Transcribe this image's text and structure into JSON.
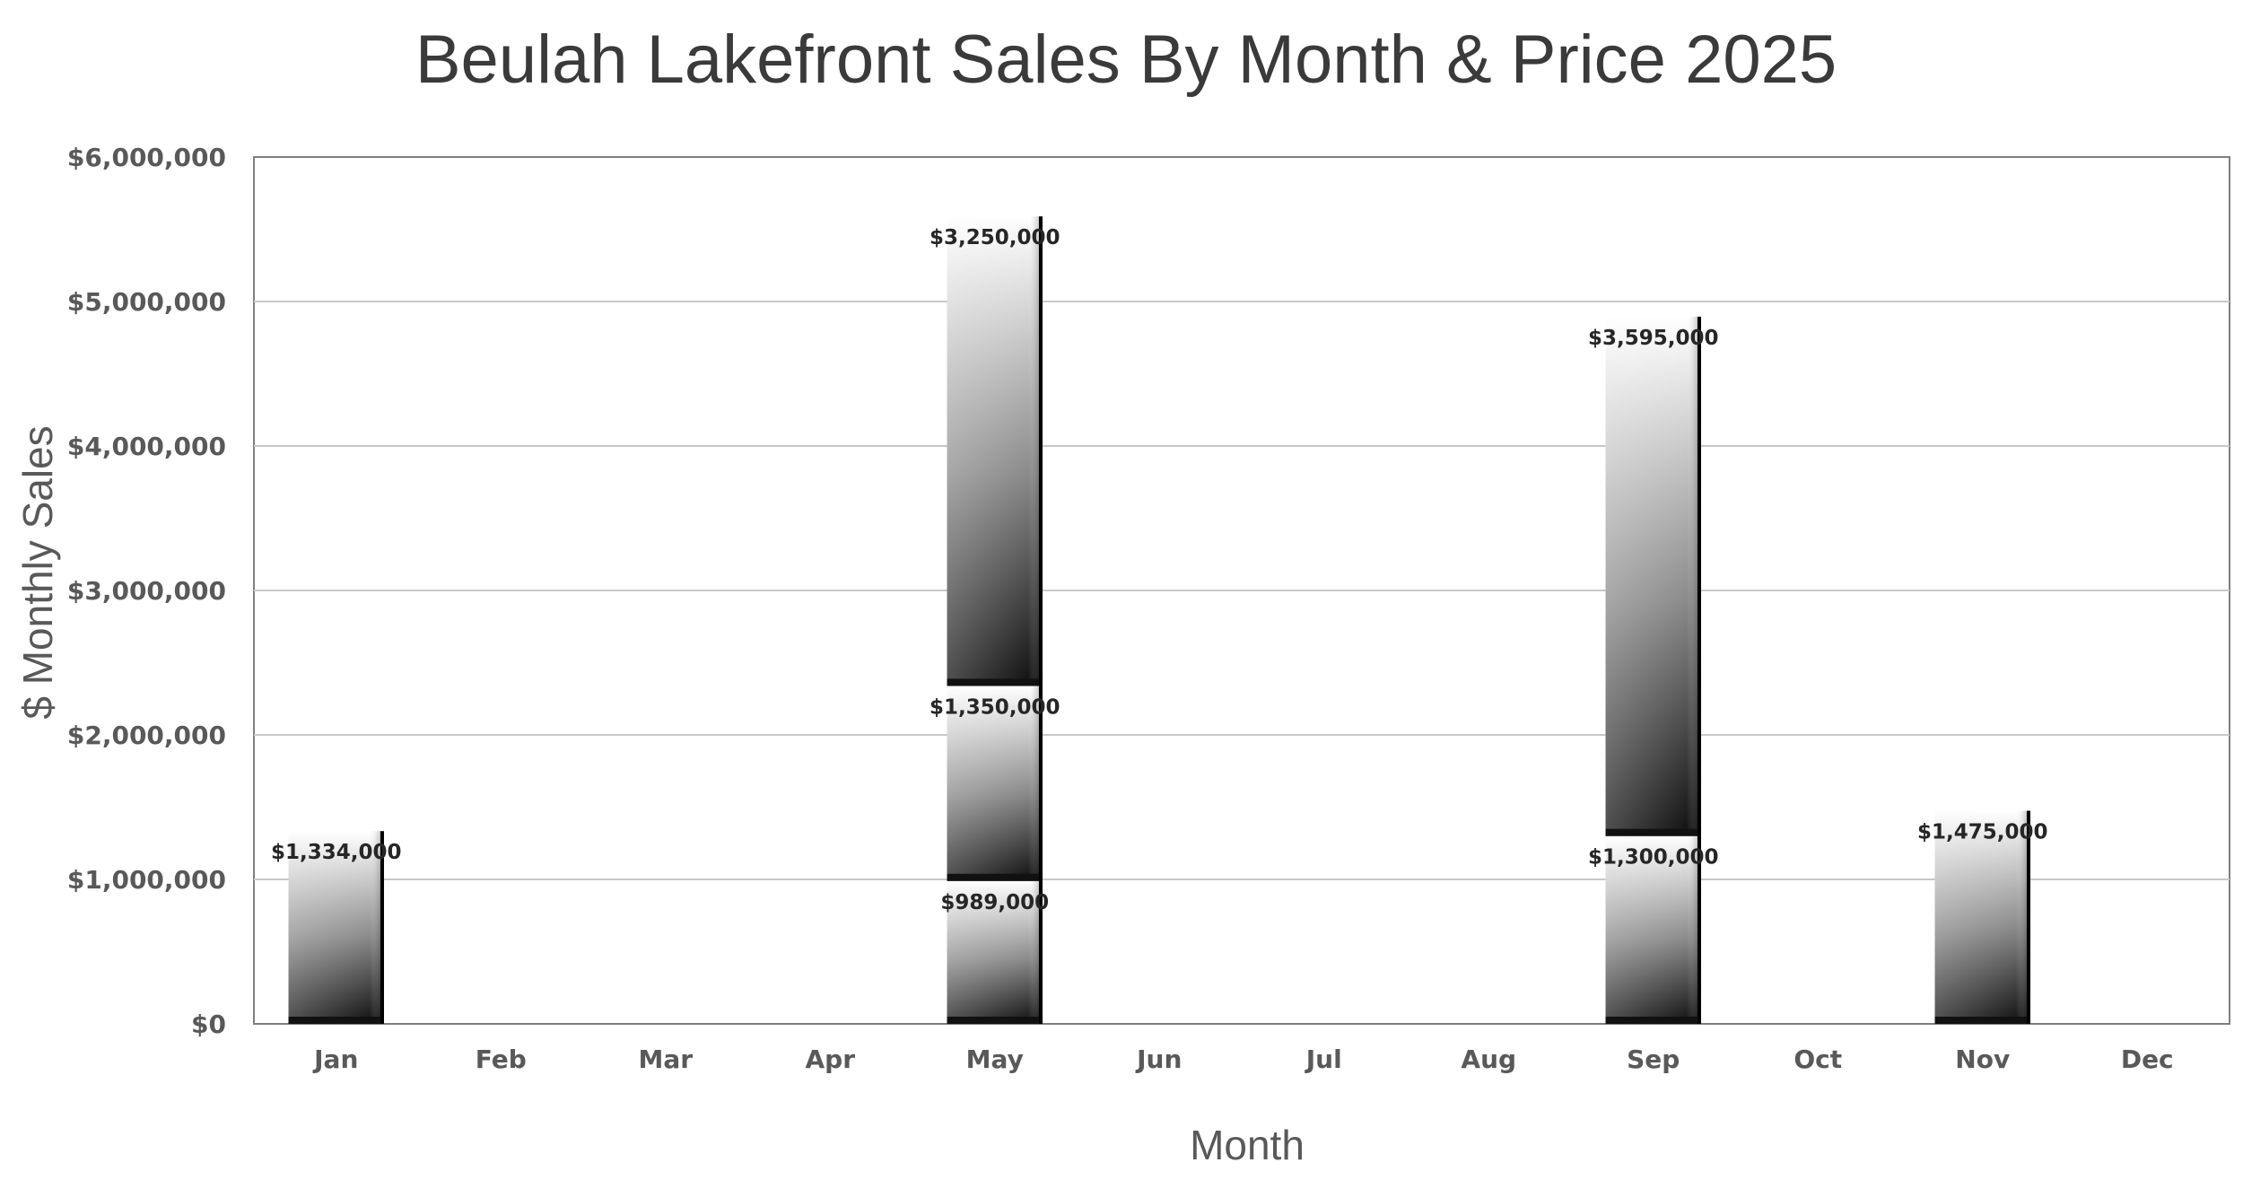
{
  "chart_data": {
    "type": "bar",
    "stacked": true,
    "title": "Beulah Lakefront Sales By Month & Price 2025",
    "xlabel": "Month",
    "ylabel": "$ Monthly Sales",
    "ylim": [
      0,
      6000000
    ],
    "ytick_step": 1000000,
    "ytick_labels": [
      "$0",
      "$1,000,000",
      "$2,000,000",
      "$3,000,000",
      "$4,000,000",
      "$5,000,000",
      "$6,000,000"
    ],
    "categories": [
      "Jan",
      "Feb",
      "Mar",
      "Apr",
      "May",
      "Jun",
      "Jul",
      "Aug",
      "Sep",
      "Oct",
      "Nov",
      "Dec"
    ],
    "grid": true,
    "legend": "none",
    "stacks": [
      {
        "category": "Jan",
        "sales": [
          {
            "value": 1334000,
            "label": "$1,334,000"
          }
        ]
      },
      {
        "category": "May",
        "sales": [
          {
            "value": 989000,
            "label": "$989,000"
          },
          {
            "value": 1350000,
            "label": "$1,350,000"
          },
          {
            "value": 3250000,
            "label": "$3,250,000"
          }
        ]
      },
      {
        "category": "Sep",
        "sales": [
          {
            "value": 1300000,
            "label": "$1,300,000"
          },
          {
            "value": 3595000,
            "label": "$3,595,000"
          }
        ]
      },
      {
        "category": "Nov",
        "sales": [
          {
            "value": 1475000,
            "label": "$1,475,000"
          }
        ]
      }
    ]
  }
}
